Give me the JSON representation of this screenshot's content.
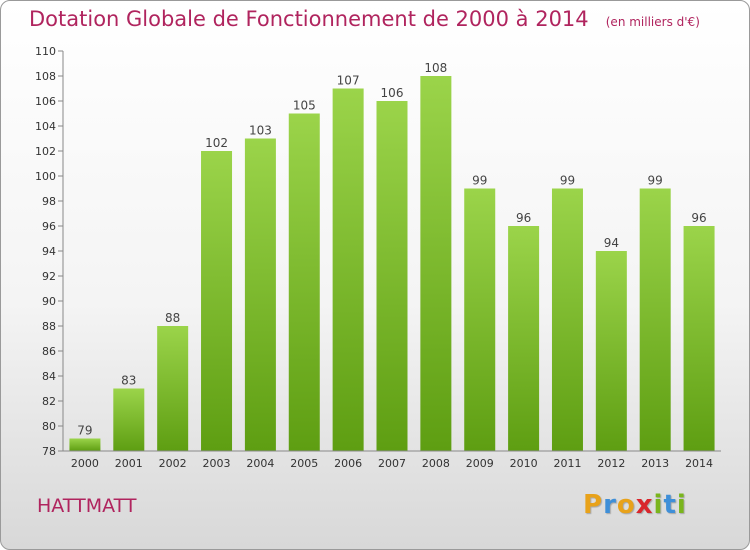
{
  "chart_data": {
    "type": "bar",
    "title": "Dotation Globale de Fonctionnement de 2000 à 2014",
    "unit_note": "(en milliers d'€)",
    "categories": [
      "2000",
      "2001",
      "2002",
      "2003",
      "2004",
      "2005",
      "2006",
      "2007",
      "2008",
      "2009",
      "2010",
      "2011",
      "2012",
      "2013",
      "2014"
    ],
    "values": [
      79,
      83,
      88,
      102,
      103,
      105,
      107,
      106,
      108,
      99,
      96,
      99,
      94,
      99,
      96
    ],
    "ylim": [
      78,
      110
    ],
    "yticks": [
      78,
      80,
      82,
      84,
      86,
      88,
      90,
      92,
      94,
      96,
      98,
      100,
      102,
      104,
      106,
      108,
      110
    ],
    "grid": false,
    "bar_color_top": "#9bd44a",
    "bar_color_bottom": "#5e9e12",
    "title_color": "#b0245e"
  },
  "commune": "HATTMATT",
  "brand": {
    "letters": [
      "P",
      "r",
      "o",
      "x",
      "i",
      "t",
      "i"
    ],
    "colors": [
      "#e8a21a",
      "#3f8fd8",
      "#e8a21a",
      "#d9262c",
      "#7ab51d",
      "#3f8fd8",
      "#7ab51d"
    ]
  }
}
